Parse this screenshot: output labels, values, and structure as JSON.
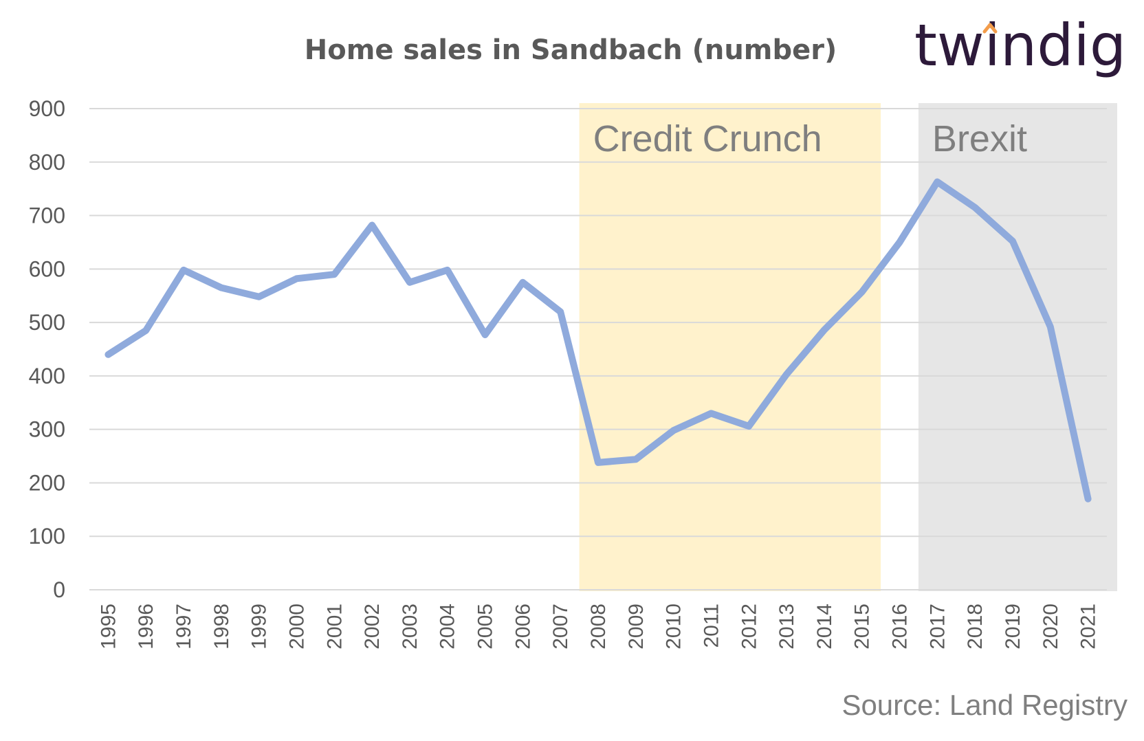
{
  "logo": {
    "text": "twindig",
    "accent_color": "#f39c4a",
    "text_color": "#2d1a3a"
  },
  "source": "Source: Land Registry",
  "chart_data": {
    "type": "line",
    "title": "Home sales in Sandbach (number)",
    "xlabel": "",
    "ylabel": "",
    "ylim": [
      0,
      900
    ],
    "yticks": [
      0,
      100,
      200,
      300,
      400,
      500,
      600,
      700,
      800,
      900
    ],
    "grid": true,
    "line_color": "#8faadc",
    "categories": [
      "1995",
      "1996",
      "1997",
      "1998",
      "1999",
      "2000",
      "2001",
      "2002",
      "2003",
      "2004",
      "2005",
      "2006",
      "2007",
      "2008",
      "2009",
      "2010",
      "2011",
      "2012",
      "2013",
      "2014",
      "2015",
      "2016",
      "2017",
      "2018",
      "2019",
      "2020",
      "2021"
    ],
    "values": [
      440,
      485,
      598,
      565,
      548,
      582,
      590,
      682,
      575,
      598,
      477,
      575,
      520,
      238,
      244,
      298,
      330,
      306,
      403,
      486,
      557,
      650,
      763,
      715,
      652,
      492,
      170
    ],
    "bands": [
      {
        "label": "Credit Crunch",
        "from": "2007",
        "to": "2016",
        "color": "#fff2cc"
      },
      {
        "label": "Brexit",
        "from": "2016",
        "to": "2021",
        "color": "#e6e6e6"
      }
    ]
  }
}
